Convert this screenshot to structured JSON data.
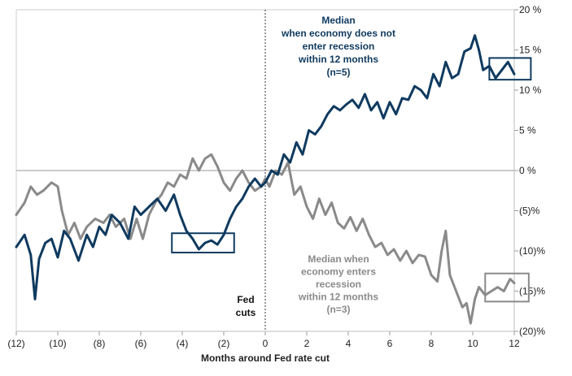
{
  "chart_data": {
    "type": "line",
    "xlabel": "Months around Fed rate cut",
    "ylabel": "",
    "xlim": [
      -12,
      12
    ],
    "ylim": [
      -20,
      20
    ],
    "x_ticks": [
      "(12)",
      "(10)",
      "(8)",
      "(6)",
      "(4)",
      "(2)",
      "0",
      "2",
      "4",
      "6",
      "8",
      "10",
      "12"
    ],
    "y_ticks": [
      "20 %",
      "15 %",
      "10 %",
      "5 %",
      "0 %",
      "(5)%",
      "(10)%",
      "(15)%",
      "(20)%"
    ],
    "y_tick_values": [
      20,
      15,
      10,
      5,
      0,
      -5,
      -10,
      -15,
      -20
    ],
    "vertical_marker_x": 0,
    "marker_label": [
      "Fed",
      "cuts"
    ],
    "colors": {
      "no_recession": "#0f3a5f",
      "recession": "#8a8a8a"
    },
    "series": [
      {
        "label": [
          "Median",
          "when economy does not",
          "enter recession",
          "within 12 months",
          "(n=5)"
        ],
        "x": [
          -12,
          -11.6,
          -11.3,
          -11.1,
          -10.9,
          -10.6,
          -10.3,
          -10,
          -9.7,
          -9.4,
          -9,
          -8.6,
          -8.3,
          -8,
          -7.7,
          -7.4,
          -7,
          -6.6,
          -6.3,
          -6,
          -5.6,
          -5.2,
          -4.8,
          -4.4,
          -4.1,
          -3.8,
          -3.5,
          -3.2,
          -2.9,
          -2.6,
          -2.3,
          -2,
          -1.7,
          -1.4,
          -1.1,
          -0.8,
          -0.5,
          -0.2,
          0,
          0.3,
          0.6,
          0.9,
          1.2,
          1.5,
          1.8,
          2.1,
          2.4,
          2.7,
          3,
          3.3,
          3.6,
          3.9,
          4.2,
          4.5,
          4.8,
          5.1,
          5.4,
          5.7,
          6,
          6.3,
          6.6,
          6.9,
          7.2,
          7.5,
          7.8,
          8.1,
          8.4,
          8.7,
          9,
          9.3,
          9.6,
          9.9,
          10.1,
          10.3,
          10.5,
          10.8,
          11.1,
          11.4,
          11.7,
          12
        ],
        "values": [
          -9.5,
          -8,
          -10.5,
          -16,
          -11,
          -9,
          -8.5,
          -10.8,
          -7.5,
          -8.5,
          -11.2,
          -8,
          -9.5,
          -7,
          -8,
          -5.5,
          -6.5,
          -8.5,
          -4.5,
          -5.5,
          -4.5,
          -3.5,
          -5,
          -3,
          -5.5,
          -7.5,
          -8.5,
          -9.8,
          -9,
          -8.7,
          -9.2,
          -8,
          -6,
          -4.5,
          -3.5,
          -2,
          -1,
          -2,
          -1.5,
          0,
          -0.5,
          2,
          1,
          3.5,
          2,
          5,
          4.5,
          5.5,
          7,
          8,
          7.5,
          8.2,
          8.8,
          7.8,
          9.5,
          7.5,
          8.5,
          6.5,
          8.5,
          7,
          9,
          8.8,
          10.5,
          10,
          9,
          12,
          10.5,
          13.5,
          11.5,
          12,
          14.8,
          15.2,
          16.8,
          15,
          12.5,
          13,
          11.5,
          12.5,
          13.5,
          12
        ]
      },
      {
        "label": [
          "Median when",
          "economy enters",
          "recession",
          "within 12 months",
          "(n=3)"
        ],
        "x": [
          -12,
          -11.6,
          -11.3,
          -11,
          -10.7,
          -10.3,
          -10,
          -9.8,
          -9.5,
          -9.2,
          -8.9,
          -8.6,
          -8.2,
          -7.8,
          -7.5,
          -7.2,
          -6.8,
          -6.5,
          -6.2,
          -5.9,
          -5.6,
          -5.3,
          -5,
          -4.7,
          -4.4,
          -4.1,
          -3.8,
          -3.5,
          -3.2,
          -2.9,
          -2.6,
          -2.3,
          -2,
          -1.7,
          -1.4,
          -1.1,
          -0.8,
          -0.5,
          -0.2,
          0,
          0.2,
          0.5,
          0.8,
          1.1,
          1.4,
          1.7,
          2,
          2.3,
          2.6,
          2.9,
          3.2,
          3.5,
          3.8,
          4.1,
          4.4,
          4.7,
          5,
          5.3,
          5.6,
          5.9,
          6.2,
          6.5,
          6.8,
          7.1,
          7.4,
          7.7,
          8,
          8.3,
          8.5,
          8.7,
          8.9,
          9.2,
          9.5,
          9.7,
          9.9,
          10.1,
          10.3,
          10.6,
          10.9,
          11.2,
          11.5,
          11.8,
          12
        ],
        "values": [
          -5.5,
          -4,
          -2,
          -3,
          -2.5,
          -1.5,
          -2,
          -5,
          -8,
          -6.5,
          -8.5,
          -7,
          -6,
          -6.5,
          -5.5,
          -7,
          -6,
          -8.5,
          -6,
          -8.5,
          -5.5,
          -4,
          -3,
          -1.5,
          -2,
          -0.5,
          -1,
          1.5,
          0,
          1.5,
          2,
          0.5,
          -1.5,
          -2.5,
          -1,
          0,
          -1.5,
          -2.5,
          -2,
          -1,
          -2,
          0,
          -0.5,
          1,
          -3,
          -2,
          -4.5,
          -6,
          -3.5,
          -5.5,
          -4,
          -6.5,
          -7.2,
          -5.8,
          -7.5,
          -6,
          -8,
          -9.5,
          -9,
          -10.5,
          -9.8,
          -11.2,
          -10,
          -11.5,
          -10.5,
          -10.7,
          -13,
          -13.8,
          -10,
          -7.5,
          -13,
          -15,
          -17,
          -16.5,
          -19,
          -16,
          -14.5,
          -15.5,
          -15,
          -14.5,
          -15,
          -13.5,
          -14
        ]
      }
    ],
    "highlight_boxes": [
      {
        "x0": -4.5,
        "x1": -1.5,
        "y0": -10.2,
        "y1": -7.8,
        "color": "#0f3a5f"
      },
      {
        "x0": 10.8,
        "x1": 12.8,
        "y0": 11.3,
        "y1": 14.0,
        "color": "#0f3a5f"
      },
      {
        "x0": 10.6,
        "x1": 12.7,
        "y0": -16.3,
        "y1": -12.8,
        "color": "#8a8a8a"
      }
    ]
  }
}
